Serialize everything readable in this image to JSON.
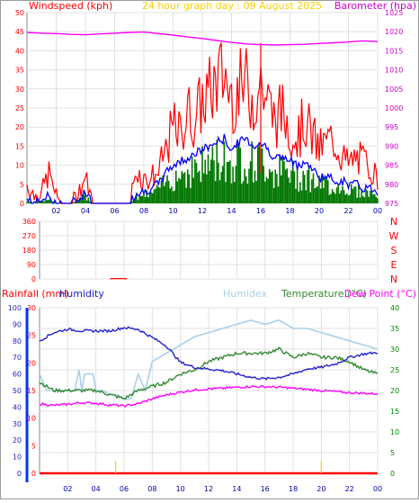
{
  "header": {
    "windspeed_label": "Windspeed (kph)",
    "title": "24 hour graph day : 09 August 2025",
    "barometer_label": "Barometer (hpa)"
  },
  "lower_header": {
    "rainfall_label": "Rainfall (mm)",
    "humidity_label": "Humidity",
    "humidex_label": "Humidex",
    "temperature_label": "Temperature (°C)",
    "dewpoint_label": "Dew Point (°C)"
  },
  "colors": {
    "wind_speed": "#ff0000",
    "wind_avg": "#0000ff",
    "wind_fill": "#007700",
    "barometer": "#ff00ff",
    "direction": "#ff0000",
    "rain_axis": "#ff0000",
    "humidity": "#2222cc",
    "humidex": "#a8d0e8",
    "temperature": "#338833",
    "dewpoint": "#ff00ff",
    "rain_total_axis": "#0033ff",
    "temp_axis": "#008800"
  },
  "chart_data": [
    {
      "type": "line",
      "title": "24 hour graph day : 09 August 2025",
      "xlabel": "",
      "x_ticks": [
        "02",
        "04",
        "06",
        "08",
        "10",
        "12",
        "14",
        "16",
        "18",
        "20",
        "22",
        "00"
      ],
      "left_axis": {
        "label": "Windspeed (kph)",
        "range": [
          0,
          50
        ],
        "ticks": [
          0,
          5,
          10,
          15,
          20,
          25,
          30,
          35,
          40,
          45,
          50
        ]
      },
      "right_axis": {
        "label": "Barometer (hpa)",
        "range": [
          975,
          1025
        ],
        "ticks": [
          975,
          980,
          985,
          990,
          995,
          1000,
          1005,
          1010,
          1015,
          1020,
          1025
        ]
      },
      "grid": true,
      "series": [
        {
          "name": "Windspeed (kph)",
          "axis": "left",
          "x": [
            0,
            0.5,
            1,
            1.5,
            2,
            2.5,
            3,
            3.5,
            4,
            4.5,
            5,
            5.5,
            6,
            6.5,
            7,
            7.5,
            8,
            8.5,
            9,
            9.5,
            10,
            10.5,
            11,
            11.5,
            12,
            12.5,
            13,
            13.5,
            14,
            14.5,
            15,
            15.5,
            16,
            16.5,
            17,
            17.5,
            18,
            18.5,
            19,
            19.5,
            20,
            20.5,
            21,
            21.5,
            22,
            22.5,
            23,
            23.5,
            24
          ],
          "values": [
            5,
            2,
            3,
            8,
            2,
            0,
            0,
            3,
            7,
            0,
            0,
            0,
            0,
            0,
            0,
            9,
            6,
            7,
            8,
            14,
            20,
            18,
            24,
            22,
            27,
            29,
            32,
            34,
            28,
            30,
            31,
            27,
            32,
            26,
            22,
            24,
            20,
            17,
            22,
            18,
            14,
            16,
            17,
            13,
            10,
            12,
            11,
            10,
            6
          ]
        },
        {
          "name": "Average windspeed (kph)",
          "axis": "left",
          "x": [
            0,
            0.5,
            1,
            1.5,
            2,
            2.5,
            3,
            3.5,
            4,
            4.5,
            5,
            5.5,
            6,
            6.5,
            7,
            7.5,
            8,
            8.5,
            9,
            9.5,
            10,
            10.5,
            11,
            11.5,
            12,
            12.5,
            13,
            13.5,
            14,
            14.5,
            15,
            15.5,
            16,
            16.5,
            17,
            17.5,
            18,
            18.5,
            19,
            19.5,
            20,
            20.5,
            21,
            21.5,
            22,
            22.5,
            23,
            23.5,
            24
          ],
          "values": [
            1,
            0,
            1,
            2,
            0,
            0,
            0,
            1,
            3,
            0,
            0,
            0,
            0,
            0,
            0,
            3,
            3,
            4,
            5,
            8,
            10,
            11,
            12,
            13,
            14,
            15,
            16,
            17,
            14,
            16,
            17,
            15,
            16,
            14,
            12,
            12,
            11,
            10,
            11,
            9,
            7,
            7,
            6,
            6,
            5,
            5,
            4,
            4,
            3
          ]
        },
        {
          "name": "Barometer (hpa)",
          "axis": "right",
          "x": [
            0,
            1,
            2,
            3,
            4,
            5,
            6,
            7,
            8,
            9,
            10,
            11,
            12,
            13,
            14,
            15,
            16,
            17,
            18,
            19,
            20,
            21,
            22,
            23,
            24
          ],
          "values": [
            1019.8,
            1019.6,
            1019.5,
            1019.3,
            1019.2,
            1019.4,
            1019.6,
            1019.8,
            1019.9,
            1019.5,
            1019.1,
            1018.6,
            1018.2,
            1017.7,
            1017.2,
            1016.8,
            1016.6,
            1016.5,
            1016.6,
            1016.7,
            1016.9,
            1017.1,
            1017.3,
            1017.6,
            1017.4
          ]
        }
      ]
    },
    {
      "type": "line",
      "title": "",
      "x_ticks": [
        "02",
        "04",
        "06",
        "08",
        "10",
        "12",
        "14",
        "16",
        "18",
        "20",
        "22",
        "00"
      ],
      "left_axis": {
        "label": "",
        "range": [
          0,
          360
        ],
        "ticks": [
          0,
          90,
          180,
          270,
          360
        ]
      },
      "right_axis": {
        "label": "",
        "categories": [
          "N",
          "E",
          "S",
          "W",
          "N"
        ]
      },
      "grid": true,
      "series": [
        {
          "name": "Wind direction",
          "x": [
            5,
            5.3,
            5.6,
            5.9,
            6.2
          ],
          "values": [
            1,
            2,
            2,
            2,
            1
          ]
        }
      ]
    },
    {
      "type": "line",
      "title": "",
      "x_ticks": [
        "02",
        "04",
        "06",
        "08",
        "10",
        "12",
        "14",
        "16",
        "18",
        "20",
        "22",
        "00"
      ],
      "far_left_axis": {
        "label": "",
        "range": [
          0,
          100
        ],
        "ticks": [
          0,
          10,
          20,
          30,
          40,
          50,
          60,
          70,
          80,
          90,
          100
        ]
      },
      "left_axis": {
        "label": "Rainfall (mm)",
        "range": [
          0,
          30
        ],
        "ticks": [
          0,
          5,
          10,
          15,
          20,
          25,
          30
        ]
      },
      "right_axis": {
        "label": "Temperature (°C)",
        "range": [
          0,
          40
        ],
        "ticks": [
          0,
          5,
          10,
          15,
          20,
          25,
          30,
          35,
          40
        ]
      },
      "grid": true,
      "series": [
        {
          "name": "Humidity",
          "axis": "far_left",
          "x": [
            0,
            1,
            2,
            3,
            4,
            5,
            6,
            7,
            8,
            9,
            10,
            11,
            12,
            13,
            14,
            15,
            16,
            17,
            18,
            19,
            20,
            21,
            22,
            23,
            24
          ],
          "values": [
            80,
            85,
            87,
            86,
            86,
            86,
            88,
            87,
            82,
            77,
            67,
            64,
            63,
            62,
            60,
            58,
            57,
            58,
            60,
            63,
            64,
            66,
            70,
            72,
            73
          ]
        },
        {
          "name": "Humidex",
          "axis": "right",
          "x": [
            0,
            0.5,
            1,
            1.5,
            2,
            2.5,
            2.8,
            3,
            3.2,
            3.5,
            3.8,
            4,
            4.2,
            4.5,
            5,
            5.5,
            6,
            6.5,
            7,
            7.5,
            8,
            9,
            10,
            11,
            12,
            13,
            14,
            15,
            16,
            17,
            18,
            19,
            20,
            21,
            22,
            23,
            24
          ],
          "values": [
            24,
            20,
            20,
            20,
            20,
            20,
            25,
            20,
            24,
            24,
            24,
            20,
            20,
            20,
            19,
            19,
            18,
            18,
            24,
            20,
            27,
            29,
            31,
            33,
            34,
            35,
            36,
            37,
            36,
            37,
            35,
            35,
            34,
            33,
            32,
            31,
            30
          ]
        },
        {
          "name": "Temperature (°C)",
          "axis": "right",
          "x": [
            0,
            1,
            2,
            3,
            4,
            5,
            6,
            7,
            8,
            9,
            10,
            11,
            12,
            13,
            14,
            15,
            16,
            17,
            18,
            19,
            20,
            21,
            22,
            23,
            24
          ],
          "values": [
            22,
            20,
            20,
            20,
            20,
            19,
            18,
            20,
            21,
            22,
            24,
            25,
            27,
            28,
            29,
            29,
            29,
            30,
            28,
            29,
            28,
            28,
            27,
            25,
            24
          ]
        },
        {
          "name": "Dew Point (°C)",
          "axis": "left",
          "x": [
            0,
            1,
            2,
            3,
            4,
            5,
            6,
            7,
            8,
            9,
            10,
            11,
            12,
            13,
            14,
            15,
            16,
            17,
            18,
            19,
            20,
            21,
            22,
            23,
            24
          ],
          "values": [
            12.6,
            12.3,
            12.5,
            12.8,
            12.7,
            12.4,
            12.2,
            12.6,
            13.5,
            14.2,
            14.7,
            15.1,
            15.3,
            15.4,
            15.6,
            15.7,
            15.7,
            15.6,
            15.4,
            15.2,
            15.0,
            14.8,
            14.6,
            14.5,
            14.4
          ]
        },
        {
          "name": "Rainfall (mm)",
          "axis": "left",
          "x": [
            0,
            24
          ],
          "values": [
            0,
            0
          ]
        }
      ]
    }
  ]
}
